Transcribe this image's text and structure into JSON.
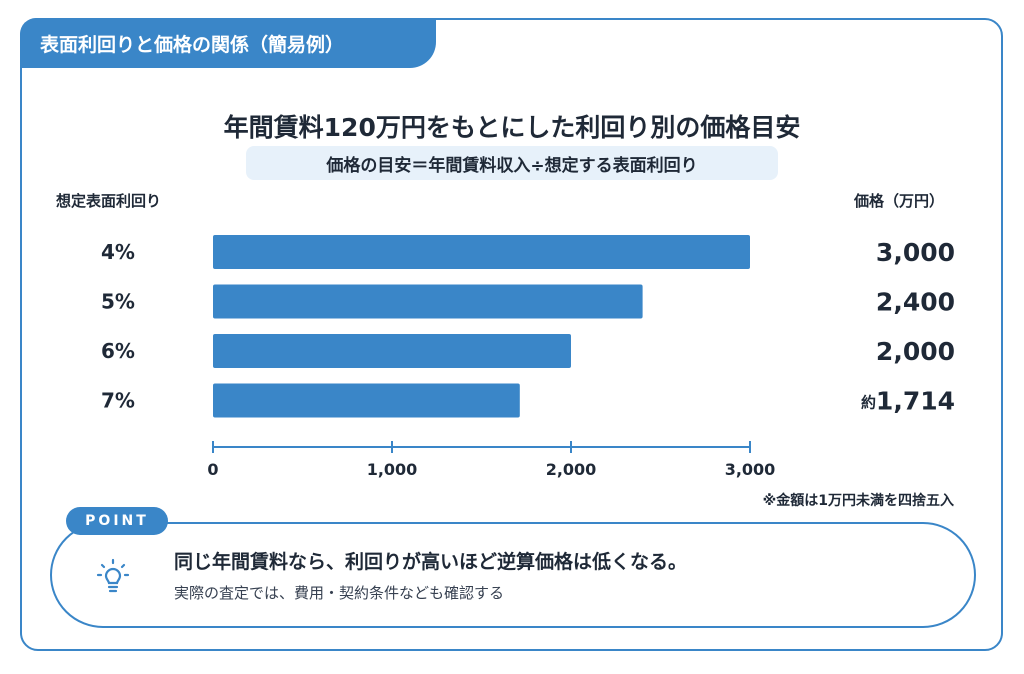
{
  "header_tab": "表面利回りと価格の関係（簡易例）",
  "title": "年間賃料120万円をもとにした利回り別の価格目安",
  "formula": "価格の目安＝年間賃料収入÷想定する表面利回り",
  "left_header": "想定表面利回り",
  "right_header": "価格（万円）",
  "footnote": "※金額は1万円未満を四捨五入",
  "point": {
    "badge": "POINT",
    "main": "同じ年間賃料なら、利回りが高いほど逆算価格は低くなる。",
    "sub": "実際の査定では、費用・契約条件なども確認する",
    "icon": "lightbulb-icon"
  },
  "colors": {
    "accent": "#3a86c8",
    "bar": "#3a86c8",
    "formula_bg": "#e7f1fa"
  },
  "chart_data": {
    "type": "bar",
    "orientation": "horizontal",
    "categories": [
      "4%",
      "5%",
      "6%",
      "7%"
    ],
    "values": [
      3000,
      2400,
      2000,
      1714
    ],
    "value_labels": [
      "3,000",
      "2,400",
      "2,000",
      "1,714"
    ],
    "value_prefixes": [
      "",
      "",
      "",
      "約"
    ],
    "xlim": [
      0,
      3000
    ],
    "xticks": [
      0,
      1000,
      2000,
      3000
    ],
    "xtick_labels": [
      "0",
      "1,000",
      "2,000",
      "3,000"
    ],
    "grid": false
  }
}
